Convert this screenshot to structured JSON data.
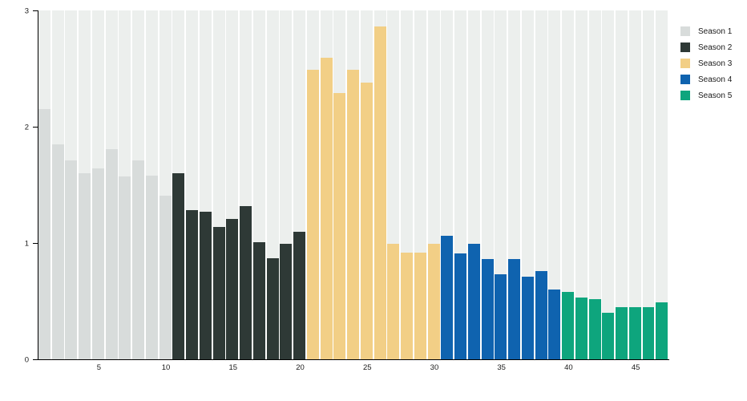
{
  "chart_data": {
    "type": "bar",
    "title": "",
    "xlabel": "",
    "ylabel": "",
    "ylim": [
      0,
      3
    ],
    "yticks": [
      0,
      1,
      2,
      3
    ],
    "xticks": [
      5,
      10,
      15,
      20,
      25,
      30,
      35,
      40,
      45
    ],
    "total_bars": 47,
    "grid": false,
    "background_bars": true,
    "background_bar_color": "#ecefed",
    "axis_color": "#000000",
    "legend_position": "top-right",
    "series": [
      {
        "name": "Season 1",
        "color": "#d8dcdb",
        "x_start": 1,
        "values": [
          2.15,
          1.85,
          1.71,
          1.6,
          1.64,
          1.81,
          1.57,
          1.71,
          1.58,
          1.41
        ]
      },
      {
        "name": "Season 2",
        "color": "#2e3936",
        "x_start": 11,
        "values": [
          1.6,
          1.28,
          1.27,
          1.14,
          1.21,
          1.32,
          1.01,
          0.87,
          0.99,
          1.1
        ]
      },
      {
        "name": "Season 3",
        "color": "#f2cf86",
        "x_start": 21,
        "values": [
          2.49,
          2.59,
          2.29,
          2.49,
          2.38,
          2.86,
          0.99,
          0.92,
          0.92,
          0.99
        ]
      },
      {
        "name": "Season 4",
        "color": "#0f63af",
        "x_start": 31,
        "values": [
          1.06,
          0.91,
          0.99,
          0.86,
          0.73,
          0.86,
          0.71,
          0.76,
          0.6
        ]
      },
      {
        "name": "Season 5",
        "color": "#0ea57d",
        "x_start": 40,
        "values": [
          0.58,
          0.53,
          0.52,
          0.4,
          0.45,
          0.45,
          0.45,
          0.49
        ]
      }
    ]
  }
}
